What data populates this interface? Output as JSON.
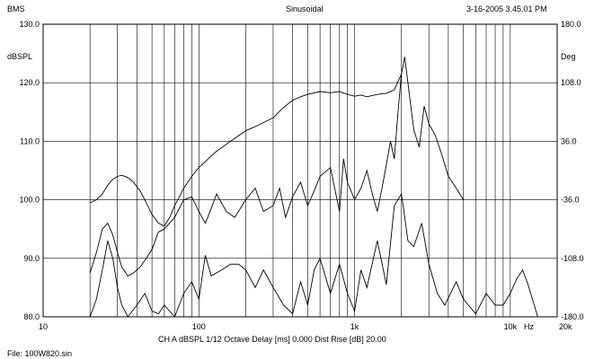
{
  "header": {
    "left": "BMS",
    "center": "Sinusoidal",
    "right": "3-16-2005 3.45.01 PM"
  },
  "footer": {
    "settings": "CH A   dBSPL   1/12 Octave   Delay [ms] 0.000   Dist Rise [dB] 20.00",
    "file": "File: 100W820.sin"
  },
  "chart_data": {
    "type": "line",
    "xscale": "log",
    "xlim": [
      10,
      20000
    ],
    "ylim": [
      80,
      130
    ],
    "y2lim": [
      -180,
      180
    ],
    "grid": true,
    "ylabel": "dBSPL",
    "y2label": "Deg",
    "xunit": "Hz",
    "x_tick_labels": [
      "10",
      "100",
      "1k",
      "10k",
      "20k"
    ],
    "y_tick_labels": [
      "80.0",
      "90.0",
      "100.0",
      "110.0",
      "120.0",
      "130.0"
    ],
    "y2_tick_labels": [
      "-180.0",
      "-108.0",
      "-36.0",
      "36.0",
      "108.0",
      "180.0"
    ],
    "series": [
      {
        "x": [
          20,
          22,
          24,
          26,
          28,
          30,
          32,
          35,
          38,
          42,
          46,
          50,
          55,
          60,
          65,
          70,
          75,
          80,
          90,
          100,
          110,
          120,
          130,
          150,
          170,
          200,
          230,
          260,
          300,
          350,
          400,
          450,
          500,
          600,
          700,
          800,
          900,
          1000,
          1100,
          1200,
          1400,
          1600,
          1800,
          2000
        ],
        "y": [
          99.5,
          100,
          101,
          102.5,
          103.5,
          104,
          104.2,
          103.8,
          103,
          101.5,
          99.5,
          97.5,
          96,
          95.5,
          97,
          99,
          100.5,
          102,
          104,
          105.5,
          106.5,
          107.5,
          108.3,
          109.5,
          110.5,
          111.8,
          112.5,
          113.2,
          114,
          115.8,
          117,
          117.6,
          118,
          118.5,
          118.3,
          118.5,
          118,
          117.7,
          117.9,
          117.6,
          118,
          118.2,
          118.8,
          121.5
        ]
      },
      {
        "x": [
          20,
          22,
          24,
          26,
          28,
          30,
          32,
          35,
          38,
          42,
          46,
          50,
          55,
          60,
          70,
          80,
          90,
          100,
          110,
          120,
          130,
          150,
          170,
          200,
          230,
          260,
          300,
          330,
          360,
          400,
          450,
          500,
          550,
          600,
          700,
          800,
          850,
          900,
          1000,
          1100,
          1200,
          1300,
          1400,
          1500,
          1600,
          1700,
          1800,
          1900,
          2000,
          2100,
          2200,
          2400,
          2600,
          2800,
          3000,
          3300,
          3600,
          4000,
          4500,
          5000
        ],
        "y": [
          87.5,
          91,
          95,
          96,
          94,
          91,
          88.5,
          87,
          87.5,
          88.5,
          90,
          91.5,
          94.5,
          95,
          97,
          100,
          100.5,
          98,
          96,
          98.5,
          101,
          98,
          97,
          100,
          102,
          98,
          99,
          102,
          97,
          100.5,
          103,
          99,
          101.5,
          104,
          105.5,
          98,
          107,
          103,
          100,
          102,
          105,
          101,
          98,
          102,
          106,
          110,
          107,
          115,
          121.5,
          124.4,
          120,
          112,
          109,
          116,
          113,
          111,
          108,
          104,
          102,
          100
        ]
      },
      {
        "x": [
          20,
          22,
          24,
          26,
          28,
          30,
          32,
          35,
          40,
          45,
          50,
          55,
          60,
          70,
          80,
          90,
          100,
          110,
          120,
          140,
          160,
          180,
          200,
          230,
          260,
          300,
          350,
          400,
          450,
          500,
          550,
          600,
          700,
          800,
          900,
          1000,
          1100,
          1200,
          1400,
          1600,
          1800,
          2000,
          2100,
          2200,
          2400,
          2700,
          3000,
          3400,
          3800,
          4500,
          5000,
          6000,
          7000,
          8000,
          9000,
          10000,
          11000,
          12000,
          13000,
          15000
        ],
        "y": [
          80,
          83,
          88,
          93,
          90,
          85,
          82,
          80,
          82,
          84,
          81,
          80.5,
          82,
          80,
          84,
          86,
          83,
          90.5,
          87,
          88,
          89,
          89,
          88,
          85,
          88,
          85,
          82,
          80.5,
          86,
          82,
          88,
          90,
          84,
          89,
          84,
          81,
          88,
          85,
          93,
          85.5,
          99,
          101,
          97,
          93,
          92,
          96,
          89,
          84,
          82,
          86,
          83,
          80.5,
          84,
          82,
          82,
          84,
          86.5,
          88,
          85.5,
          80
        ]
      }
    ]
  }
}
